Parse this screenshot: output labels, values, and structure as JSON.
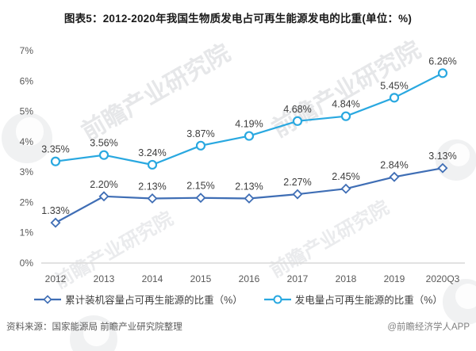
{
  "page": {
    "title": "图表5：2012-2020年我国生物质发电占可再生能源发电的比重(单位：%)"
  },
  "chart_data": {
    "type": "line",
    "title": "图表5：2012-2020年我国生物质发电占可再生能源发电的比重(单位：%)",
    "categories": [
      "2012",
      "2013",
      "2014",
      "2015",
      "2016",
      "2017",
      "2018",
      "2019",
      "2020Q3"
    ],
    "series": [
      {
        "name": "累计装机容量占可再生能源的比重（%）",
        "marker": "diamond",
        "color": "#3f6eb5",
        "values": [
          1.33,
          2.2,
          2.13,
          2.15,
          2.13,
          2.27,
          2.45,
          2.84,
          3.13
        ],
        "labels": [
          "1.33%",
          "2.20%",
          "2.13%",
          "2.15%",
          "2.13%",
          "2.27%",
          "2.45%",
          "2.84%",
          "3.13%"
        ]
      },
      {
        "name": "发电量占可再生能源的比重（%）",
        "marker": "circle",
        "color": "#29a8e0",
        "values": [
          3.35,
          3.56,
          3.24,
          3.87,
          4.19,
          4.68,
          4.84,
          5.45,
          6.26
        ],
        "labels": [
          "3.35%",
          "3.56%",
          "3.24%",
          "3.87%",
          "4.19%",
          "4.68%",
          "4.84%",
          "5.45%",
          "6.26%"
        ]
      }
    ],
    "ylim": [
      0,
      7
    ],
    "yticks": [
      "0%",
      "1%",
      "2%",
      "3%",
      "4%",
      "5%",
      "6%",
      "7%"
    ],
    "xlabel": "",
    "ylabel": "",
    "grid": false,
    "legend_position": "bottom",
    "colors": {
      "axis_line": "#d9d9d9",
      "tick_label": "#595959",
      "data_label": "#3d3d3d"
    }
  },
  "watermark": {
    "text": "前瞻产业研究院"
  },
  "footer": {
    "source": "资料来源：国家能源局 前瞻产业研究院整理",
    "credit": "@前瞻经济学人APP"
  }
}
